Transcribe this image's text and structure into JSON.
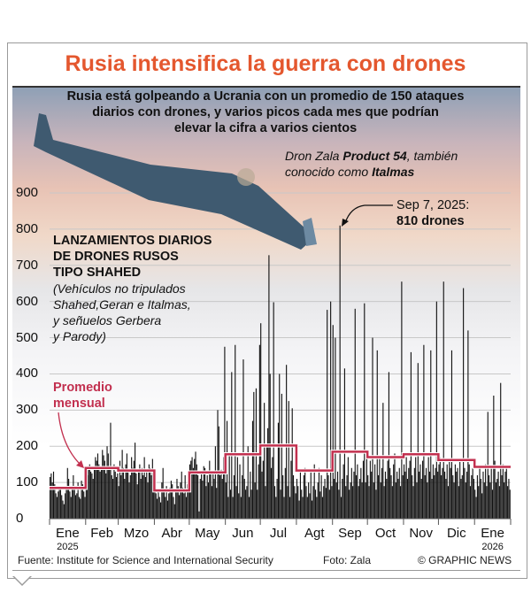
{
  "header": {
    "title": "Rusia intensifica la guerra con drones",
    "subtitle_lines": [
      "Rusia está golpeando a Ucrania con un promedio de 150 ataques",
      "diarios con drones, y varios picos cada mes que podrían",
      "elevar la cifra a varios cientos"
    ]
  },
  "photo_caption": {
    "prefix": "Dron Zala ",
    "bold1": "Product 54",
    "middle": ", también",
    "line2_prefix": "conocido como ",
    "bold2": "Italmas"
  },
  "colors": {
    "title": "#e4572e",
    "average_line": "#c2304f",
    "bars": "#111111"
  },
  "chart_data": {
    "type": "bar",
    "title": "LANZAMIENTOS DIARIOS DE DRONES RUSOS TIPO SHAHED",
    "title_lines": [
      "LANZAMIENTOS DIARIOS",
      "DE DRONES RUSOS",
      "TIPO SHAHED"
    ],
    "subtitle_lines": [
      "(Vehículos no tripulados",
      "Shahed,Geran e Italmas,",
      "y señuelos Gerbera",
      "y Parody)"
    ],
    "ylim": [
      0,
      900
    ],
    "yticks": [
      0,
      100,
      200,
      300,
      400,
      500,
      600,
      700,
      800,
      900
    ],
    "grid": true,
    "average_label_lines": [
      "Promedio",
      "mensual"
    ],
    "annotation": {
      "line1": "Sep 7, 2025:",
      "line2": "810 drones",
      "month": "Sep",
      "day": 7,
      "value": 810
    },
    "months": [
      {
        "label": "Ene",
        "year": "2025",
        "avg": 85,
        "daily": [
          115,
          125,
          100,
          130,
          95,
          70,
          60,
          75,
          80,
          85,
          65,
          50,
          40,
          70,
          85,
          140,
          110,
          75,
          60,
          90,
          120,
          80,
          65,
          70,
          100,
          60,
          55,
          105,
          95,
          75,
          60
        ]
      },
      {
        "label": "Feb",
        "avg": 140,
        "daily": [
          100,
          120,
          135,
          150,
          130,
          125,
          110,
          140,
          170,
          160,
          180,
          150,
          130,
          145,
          190,
          175,
          160,
          125,
          200,
          180,
          140,
          265,
          120,
          110,
          150,
          130,
          115,
          125
        ]
      },
      {
        "label": "Mzo",
        "avg": 133,
        "daily": [
          90,
          160,
          120,
          190,
          140,
          110,
          150,
          180,
          130,
          100,
          120,
          170,
          140,
          160,
          210,
          125,
          95,
          130,
          150,
          110,
          140,
          120,
          170,
          115,
          130,
          100,
          150,
          140,
          120,
          165,
          110
        ]
      },
      {
        "label": "Abr",
        "avg": 78,
        "daily": [
          90,
          70,
          55,
          80,
          60,
          45,
          100,
          140,
          75,
          60,
          90,
          50,
          70,
          85,
          105,
          95,
          60,
          40,
          80,
          110,
          90,
          65,
          100,
          130,
          85,
          70,
          120,
          60,
          95,
          75
        ]
      },
      {
        "label": "May",
        "avg": 128,
        "daily": [
          150,
          160,
          170,
          140,
          165,
          185,
          150,
          120,
          20,
          110,
          130,
          105,
          145,
          140,
          90,
          120,
          100,
          160,
          130,
          90,
          125,
          110,
          200,
          85,
          300,
          255,
          120,
          135,
          110,
          170,
          475
        ]
      },
      {
        "label": "Jun",
        "avg": 178,
        "daily": [
          100,
          270,
          60,
          180,
          80,
          405,
          60,
          120,
          480,
          90,
          170,
          70,
          150,
          60,
          120,
          440,
          110,
          80,
          90,
          200,
          60,
          130,
          80,
          270,
          350,
          100,
          360,
          80,
          150,
          480
        ]
      },
      {
        "label": "Jul",
        "avg": 202,
        "daily": [
          540,
          130,
          160,
          320,
          90,
          200,
          250,
          728,
          400,
          140,
          170,
          598,
          90,
          60,
          110,
          265,
          400,
          80,
          345,
          120,
          60,
          140,
          425,
          90,
          325,
          60,
          160,
          305,
          120,
          90,
          70
        ]
      },
      {
        "label": "Agt",
        "avg": 133,
        "daily": [
          110,
          90,
          50,
          130,
          80,
          60,
          120,
          140,
          90,
          60,
          100,
          70,
          130,
          50,
          90,
          150,
          80,
          60,
          100,
          140,
          75,
          120,
          60,
          90,
          110,
          85,
          577,
          120,
          80,
          600,
          90
        ]
      },
      {
        "label": "Sep",
        "avg": 185,
        "daily": [
          535,
          110,
          500,
          100,
          130,
          80,
          810,
          60,
          110,
          150,
          415,
          90,
          120,
          170,
          80,
          100,
          140,
          90,
          130,
          580,
          120,
          150,
          90,
          110,
          140,
          100,
          160,
          595,
          100,
          170
        ]
      },
      {
        "label": "Oct",
        "avg": 170,
        "daily": [
          120,
          90,
          160,
          130,
          500,
          100,
          150,
          80,
          465,
          120,
          170,
          100,
          140,
          320,
          90,
          130,
          110,
          160,
          405,
          140,
          120,
          90,
          150,
          180,
          100,
          130,
          110,
          140,
          90,
          655,
          120
        ]
      },
      {
        "label": "Nov",
        "avg": 178,
        "daily": [
          150,
          130,
          170,
          110,
          140,
          160,
          460,
          120,
          90,
          140,
          170,
          100,
          430,
          130,
          150,
          110,
          160,
          480,
          120,
          140,
          100,
          170,
          130,
          465,
          110,
          150,
          120,
          140,
          600,
          130
        ]
      },
      {
        "label": "Dic",
        "avg": 162,
        "daily": [
          150,
          170,
          120,
          140,
          655,
          130,
          110,
          150,
          90,
          160,
          140,
          465,
          120,
          100,
          150,
          130,
          140,
          90,
          160,
          110,
          120,
          637,
          140,
          100,
          130,
          520,
          150,
          90,
          120,
          140,
          110
        ]
      },
      {
        "label": "Ene",
        "year": "2026",
        "avg": 143,
        "daily": [
          80,
          60,
          120,
          90,
          140,
          110,
          70,
          130,
          100,
          150,
          90,
          295,
          120,
          100,
          140,
          80,
          340,
          160,
          100,
          110,
          130,
          90,
          375,
          120,
          150,
          100,
          130,
          140,
          90,
          110,
          80
        ]
      }
    ]
  },
  "footer": {
    "source": "Fuente: Institute for Science and International Security",
    "photo": "Foto: Zala",
    "copyright": "© GRAPHIC NEWS"
  }
}
